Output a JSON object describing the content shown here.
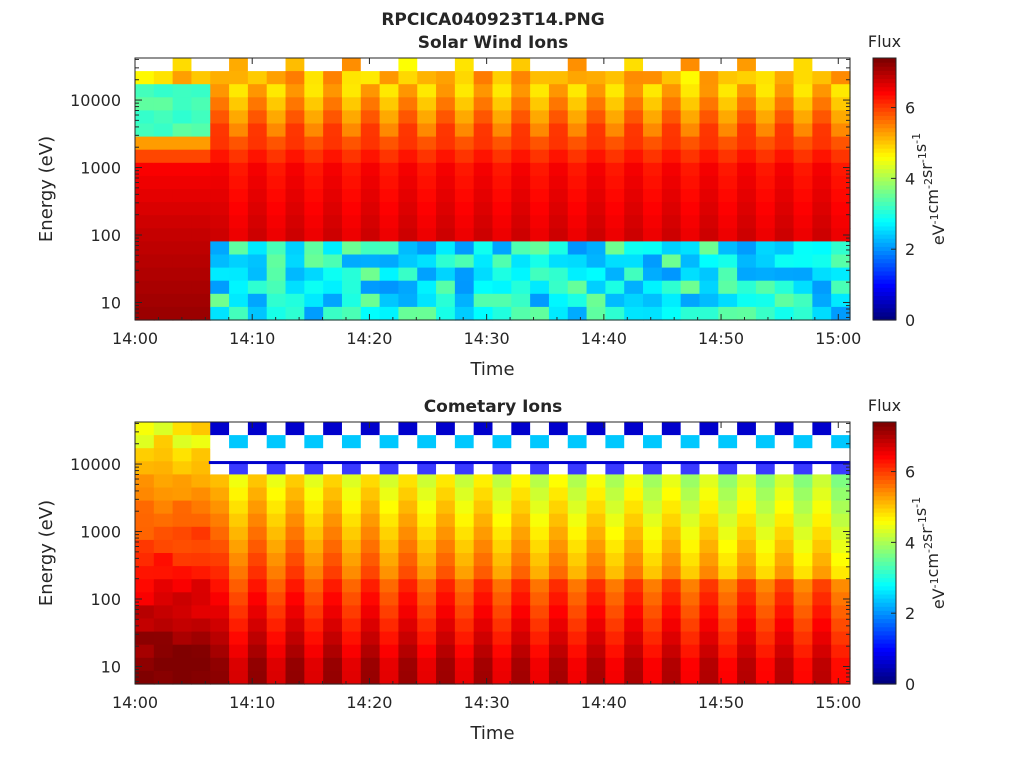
{
  "figure_title": "RPCICA040923T14.PNG",
  "colorbar": {
    "title": "Flux",
    "units": "eV-1cm-2sr-1s-1",
    "range": [
      0,
      7.4
    ],
    "ticks": [
      "0",
      "2",
      "4",
      "6"
    ],
    "colormap": "jet"
  },
  "chart_data": [
    {
      "type": "heatmap",
      "title": "Solar Wind Ions",
      "xlabel": "Time",
      "ylabel": "Energy (eV)",
      "x_ticks": [
        "14:00",
        "14:10",
        "14:20",
        "14:30",
        "14:40",
        "14:50",
        "15:00"
      ],
      "x_range_minutes": [
        0,
        61
      ],
      "y_ticks": [
        "10",
        "100",
        "1000",
        "10000"
      ],
      "y_scale": "log",
      "ylim": [
        5.5,
        42000
      ],
      "time_bins": 38,
      "energy_bins": 20,
      "features": {
        "initial_high_flux_until": "14:06",
        "low_energy_cutoff_ev_after_14_06": 75,
        "low_energy_band_flux_after_14_06": 2.8
      },
      "flux_profile": [
        {
          "energy_ev": 7,
          "flux_before_14_06": 7.2,
          "flux_after_14_06": 2.8
        },
        {
          "energy_ev": 100,
          "flux_before_14_06": 6.9,
          "flux_after_14_06": 6.7
        },
        {
          "energy_ev": 1000,
          "flux_before_14_06": 6.5,
          "flux_after_14_06": 6.4
        },
        {
          "energy_ev": 10000,
          "flux_before_14_06": 3.3,
          "flux_after_14_06": 5.2
        }
      ]
    },
    {
      "type": "heatmap",
      "title": "Cometary Ions",
      "xlabel": "Time",
      "ylabel": "Energy (eV)",
      "x_ticks": [
        "14:00",
        "14:10",
        "14:20",
        "14:30",
        "14:40",
        "14:50",
        "15:00"
      ],
      "x_range_minutes": [
        0,
        61
      ],
      "y_ticks": [
        "10",
        "100",
        "1000",
        "10000"
      ],
      "y_scale": "log",
      "ylim": [
        5.5,
        42000
      ],
      "time_bins": 38,
      "energy_bins": 20,
      "features": {
        "initial_high_flux_until": "14:06",
        "high_energy_band_ev": 10000
      },
      "flux_profile": [
        {
          "energy_ev": 10,
          "flux": 7.0
        },
        {
          "energy_ev": 100,
          "flux": 6.2
        },
        {
          "energy_ev": 1000,
          "flux": 5.4
        },
        {
          "energy_ev": 10000,
          "flux": 4.6
        }
      ]
    }
  ]
}
